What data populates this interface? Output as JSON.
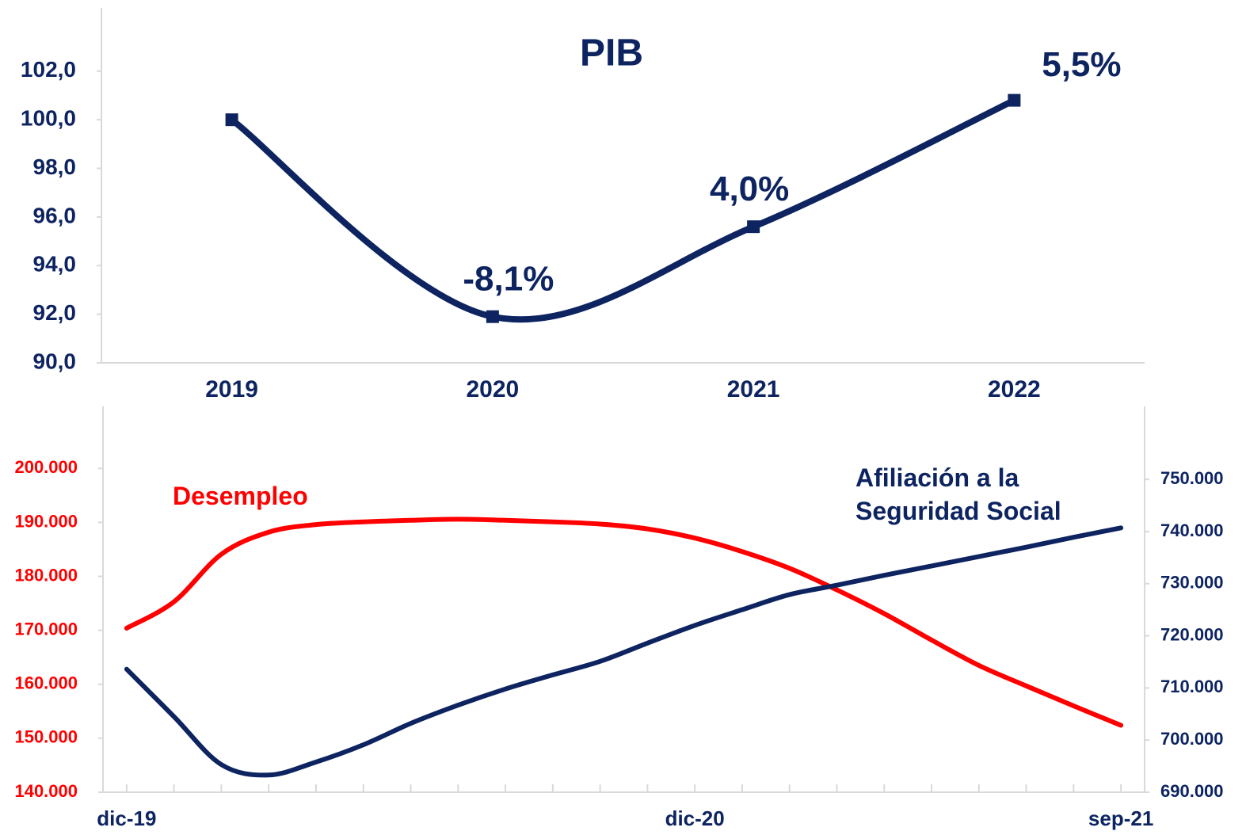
{
  "chart_data": [
    {
      "type": "line",
      "title": "PIB",
      "categories": [
        "2019",
        "2020",
        "2021",
        "2022"
      ],
      "series": [
        {
          "name": "PIB",
          "color": "#0d2461",
          "values": [
            100.0,
            91.9,
            95.6,
            100.8
          ]
        }
      ],
      "annotations": [
        {
          "label": "-8,1%",
          "value": -8.1,
          "at": "2020"
        },
        {
          "label": "4,0%",
          "value": 4.0,
          "at": "2021"
        },
        {
          "label": "5,5%",
          "value": 5.5,
          "at": "2022"
        }
      ],
      "ylim": [
        90,
        104.6
      ],
      "yticks": [
        {
          "value": 90,
          "label": "90,0"
        },
        {
          "value": 92,
          "label": "92,0"
        },
        {
          "value": 94,
          "label": "94,0"
        },
        {
          "value": 96,
          "label": "96,0"
        },
        {
          "value": 98,
          "label": "98,0"
        },
        {
          "value": 100,
          "label": "100,0"
        },
        {
          "value": 102,
          "label": "102,0"
        }
      ]
    },
    {
      "type": "line",
      "categories": [
        "dic-19",
        null,
        null,
        null,
        null,
        null,
        null,
        null,
        null,
        null,
        null,
        null,
        "dic-20",
        null,
        null,
        null,
        null,
        null,
        null,
        null,
        null,
        "sep-21"
      ],
      "series": [
        {
          "name": "Desempleo",
          "color": "#ff0000",
          "axis": "y",
          "values": [
            170400,
            175300,
            184100,
            188200,
            189600,
            190100,
            190400,
            190600,
            190400,
            190100,
            189700,
            188800,
            187100,
            184600,
            181500,
            177500,
            173100,
            168200,
            163500,
            159700,
            156000,
            152400
          ]
        },
        {
          "name": "Afiliación a la Seguridad Social",
          "color": "#0d2461",
          "axis": "y2",
          "values": [
            713600,
            704500,
            695300,
            693300,
            695800,
            699100,
            703200,
            706700,
            709800,
            712500,
            715100,
            718600,
            722000,
            725000,
            727900,
            729700,
            731600,
            733400,
            735200,
            737000,
            738900,
            740700
          ]
        }
      ],
      "ylim": [
        140000,
        211500
      ],
      "yticks": [
        {
          "value": 140000,
          "label": "140.000"
        },
        {
          "value": 150000,
          "label": "150.000"
        },
        {
          "value": 160000,
          "label": "160.000"
        },
        {
          "value": 170000,
          "label": "170.000"
        },
        {
          "value": 180000,
          "label": "180.000"
        },
        {
          "value": 190000,
          "label": "190.000"
        },
        {
          "value": 200000,
          "label": "200.000"
        }
      ],
      "y2lim": [
        690000,
        764000
      ],
      "y2ticks": [
        {
          "value": 690000,
          "label": "690.000"
        },
        {
          "value": 700000,
          "label": "700.000"
        },
        {
          "value": 710000,
          "label": "710.000"
        },
        {
          "value": 720000,
          "label": "720.000"
        },
        {
          "value": 730000,
          "label": "730.000"
        },
        {
          "value": 740000,
          "label": "740.000"
        },
        {
          "value": 750000,
          "label": "750.000"
        }
      ]
    }
  ]
}
